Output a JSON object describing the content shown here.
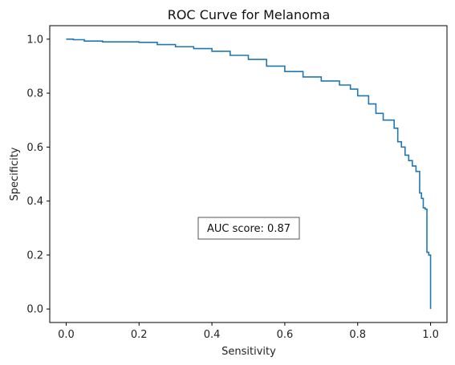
{
  "chart_data": {
    "type": "line",
    "title": "ROC Curve for Melanoma",
    "xlabel": "Sensitivity",
    "ylabel": "Specificity",
    "xlim": [
      -0.045,
      1.045
    ],
    "ylim": [
      -0.05,
      1.05
    ],
    "xticks": [
      "0.0",
      "0.2",
      "0.4",
      "0.6",
      "0.8",
      "1.0"
    ],
    "yticks": [
      "0.0",
      "0.2",
      "0.4",
      "0.6",
      "0.8",
      "1.0"
    ],
    "grid": false,
    "line_color": "#1f77b4",
    "annotation": {
      "text": "AUC score: 0.87",
      "x": 0.5,
      "y": 0.3
    },
    "x": [
      0.0,
      0.02,
      0.05,
      0.1,
      0.15,
      0.2,
      0.25,
      0.3,
      0.35,
      0.4,
      0.45,
      0.5,
      0.55,
      0.6,
      0.65,
      0.7,
      0.75,
      0.78,
      0.8,
      0.83,
      0.85,
      0.87,
      0.9,
      0.91,
      0.92,
      0.93,
      0.94,
      0.95,
      0.96,
      0.97,
      0.975,
      0.98,
      0.985,
      0.99,
      0.995,
      1.0
    ],
    "y": [
      1.0,
      0.998,
      0.993,
      0.99,
      0.99,
      0.988,
      0.98,
      0.972,
      0.965,
      0.955,
      0.94,
      0.925,
      0.9,
      0.88,
      0.86,
      0.845,
      0.83,
      0.815,
      0.79,
      0.76,
      0.725,
      0.7,
      0.67,
      0.62,
      0.6,
      0.57,
      0.55,
      0.53,
      0.51,
      0.43,
      0.41,
      0.375,
      0.37,
      0.21,
      0.2,
      0.0
    ]
  }
}
